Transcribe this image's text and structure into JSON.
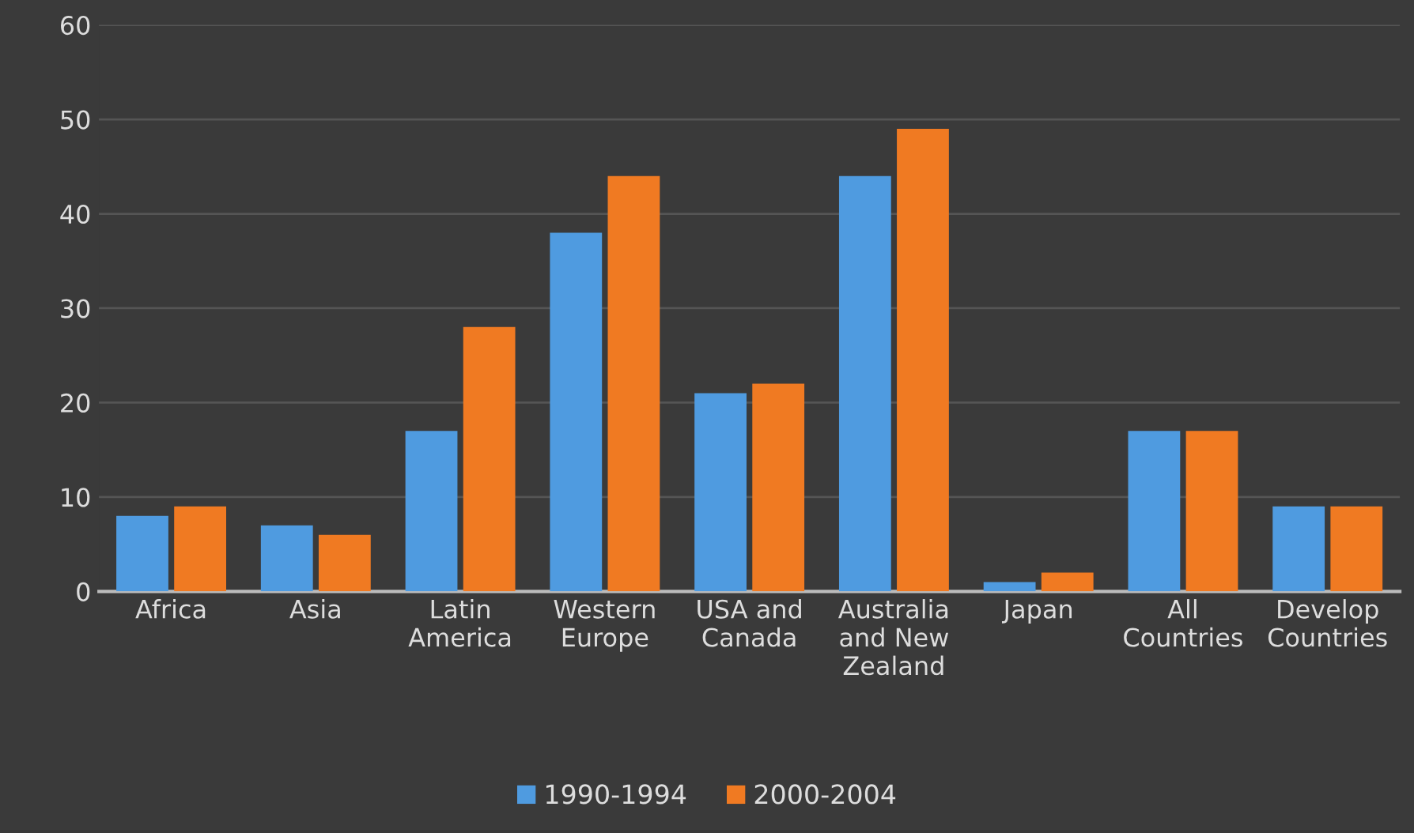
{
  "chart_data": {
    "type": "bar",
    "categories": [
      "Africa",
      "Asia",
      "Latin\nAmerica",
      "Western\nEurope",
      "USA and\nCanada",
      "Australia\nand New\nZealand",
      "Japan",
      "All\nCountries",
      "Develop\nCountries"
    ],
    "series": [
      {
        "name": "1990-1994",
        "color": "#4f9be0",
        "values": [
          8,
          7,
          17,
          38,
          21,
          44,
          1,
          17,
          9
        ]
      },
      {
        "name": "2000-2004",
        "color": "#f07a22",
        "values": [
          9,
          6,
          28,
          44,
          22,
          49,
          2,
          17,
          9
        ]
      }
    ],
    "ylim": [
      0,
      60
    ],
    "yticks": [
      0,
      10,
      20,
      30,
      40,
      50,
      60
    ],
    "grid": "y",
    "legend": "bottom"
  }
}
